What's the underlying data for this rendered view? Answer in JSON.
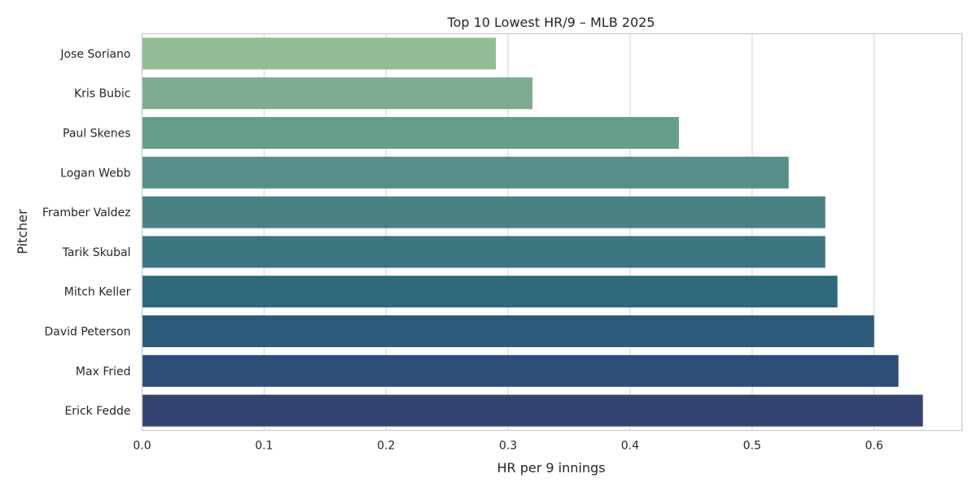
{
  "chart_data": {
    "type": "bar",
    "orientation": "horizontal",
    "title": "Top 10 Lowest HR/9 – MLB 2025",
    "xlabel": "HR per 9 innings",
    "ylabel": "Pitcher",
    "categories": [
      "Jose Soriano",
      "Kris Bubic",
      "Paul Skenes",
      "Logan Webb",
      "Framber Valdez",
      "Tarik Skubal",
      "Mitch Keller",
      "David Peterson",
      "Max Fried",
      "Erick Fedde"
    ],
    "values": [
      0.29,
      0.32,
      0.44,
      0.53,
      0.56,
      0.56,
      0.57,
      0.6,
      0.62,
      0.64
    ],
    "xlim": [
      0,
      0.672
    ],
    "xticks": [
      0.0,
      0.1,
      0.2,
      0.3,
      0.4,
      0.5,
      0.6
    ],
    "xtick_labels": [
      "0.0",
      "0.1",
      "0.2",
      "0.3",
      "0.4",
      "0.5",
      "0.6"
    ],
    "grid": "vertical",
    "colors": [
      "#93bc95",
      "#7eac93",
      "#669e8c",
      "#558f87",
      "#478281",
      "#3b757f",
      "#2d687c",
      "#2a5b7b",
      "#2d4f77",
      "#354370"
    ]
  }
}
